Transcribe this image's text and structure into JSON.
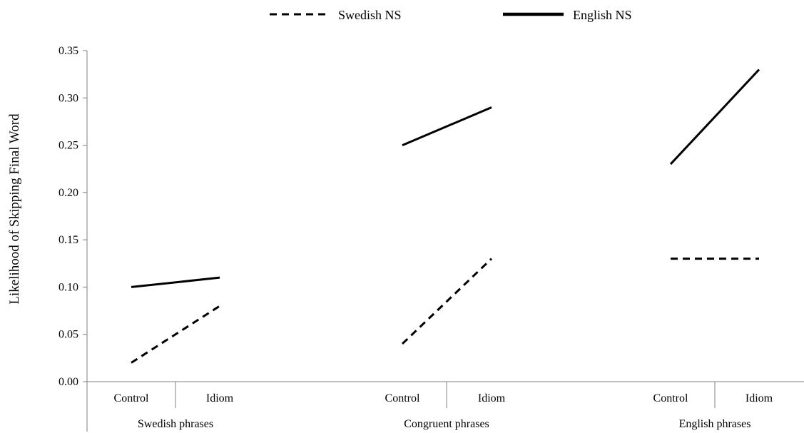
{
  "chart_data": {
    "type": "line",
    "title": "",
    "xlabel": "",
    "ylabel": "Likelihood of Skipping Final Word",
    "ylim": [
      0,
      0.35
    ],
    "yticks": [
      "0.00",
      "0.05",
      "0.10",
      "0.15",
      "0.20",
      "0.25",
      "0.30",
      "0.35"
    ],
    "grid": false,
    "legend": "top",
    "groups": [
      {
        "label": "Swedish phrases",
        "categories": [
          "Control",
          "Idiom"
        ]
      },
      {
        "label": "Congruent phrases",
        "categories": [
          "Control",
          "Idiom"
        ]
      },
      {
        "label": "English phrases",
        "categories": [
          "Control",
          "Idiom"
        ]
      }
    ],
    "series": [
      {
        "name": "Swedish NS",
        "style": "dashed",
        "values": [
          [
            0.02,
            0.08
          ],
          [
            0.04,
            0.13
          ],
          [
            0.13,
            0.13
          ]
        ]
      },
      {
        "name": "English NS",
        "style": "solid",
        "values": [
          [
            0.1,
            0.11
          ],
          [
            0.25,
            0.29
          ],
          [
            0.23,
            0.33
          ]
        ]
      }
    ],
    "colors": {
      "line": "#000000",
      "axis": "#7f7f7f"
    }
  }
}
